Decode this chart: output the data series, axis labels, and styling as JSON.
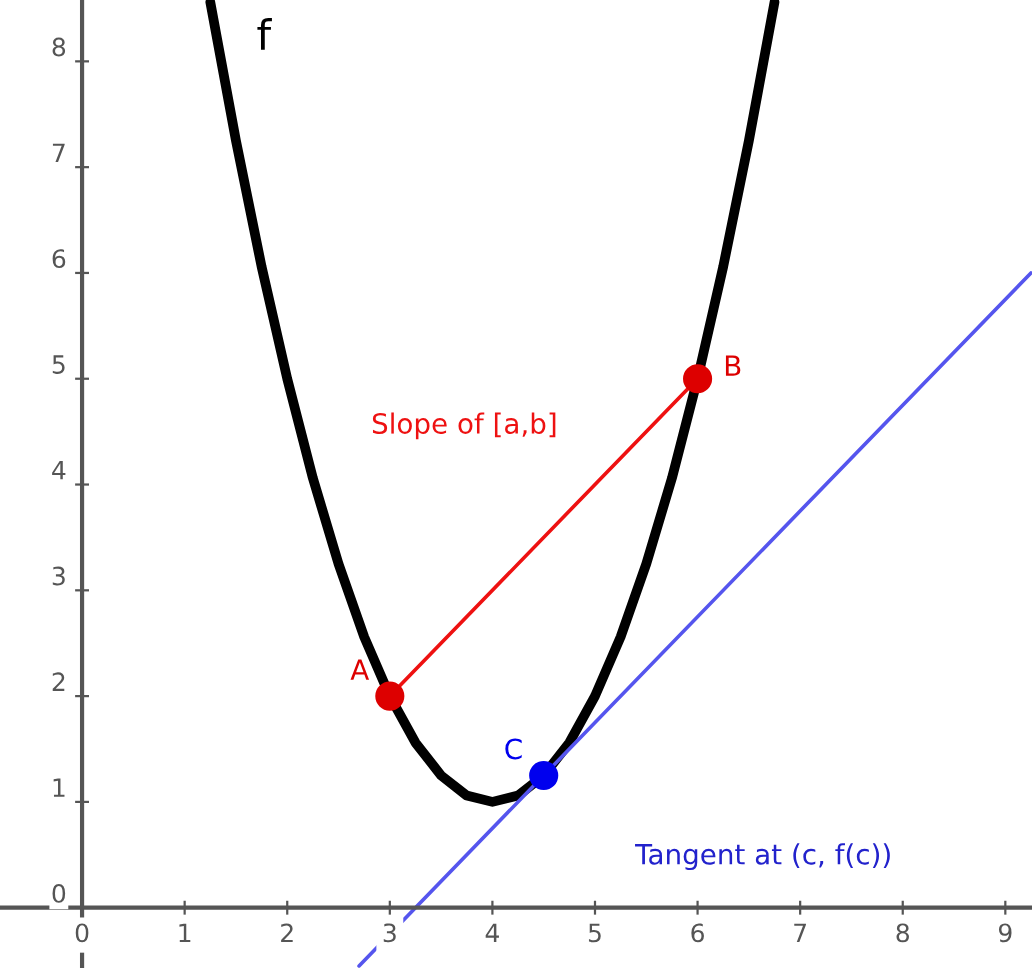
{
  "chart_data": {
    "type": "line",
    "xlim": [
      -0.8,
      9.26
    ],
    "ylim": [
      -0.57,
      8.58
    ],
    "xticks": [
      0,
      1,
      2,
      3,
      4,
      5,
      6,
      7,
      8,
      9
    ],
    "yticks": [
      0,
      1,
      2,
      3,
      4,
      5,
      6,
      7,
      8
    ],
    "grid": false,
    "legend": false,
    "marker": "none",
    "line_style": "solid",
    "series": [
      {
        "name": "f",
        "color": "#000000",
        "x": [
          1.25,
          1.5,
          1.75,
          2,
          2.25,
          2.5,
          2.75,
          3,
          3.25,
          3.5,
          3.75,
          4,
          4.25,
          4.5,
          4.75,
          5,
          5.25,
          5.5,
          5.75,
          6,
          6.25,
          6.5,
          6.75
        ],
        "values": [
          8.56,
          7.25,
          6.06,
          5,
          4.06,
          3.25,
          2.56,
          2,
          1.56,
          1.25,
          1.06,
          1,
          1.06,
          1.25,
          1.56,
          2,
          2.56,
          3.25,
          4.06,
          5,
          6.06,
          7.25,
          8.56
        ]
      },
      {
        "color": "#ee1111",
        "x": [
          3,
          6
        ],
        "values": [
          2,
          5
        ]
      },
      {
        "color": "#5555ee",
        "x": [
          2.7,
          9.25
        ],
        "values": [
          -0.55,
          6
        ]
      },
      {
        "type": "scatter",
        "name": "A",
        "color": "#dd0000",
        "marker": "circle",
        "x": [
          3
        ],
        "values": [
          2
        ]
      },
      {
        "type": "scatter",
        "name": "B",
        "color": "#dd0000",
        "marker": "circle",
        "x": [
          6
        ],
        "values": [
          5
        ]
      },
      {
        "type": "scatter",
        "name": "C",
        "color": "#0000ee",
        "marker": "circle",
        "x": [
          4.5
        ],
        "values": [
          1.25
        ]
      }
    ],
    "annotations": [
      "Slope of [a,b]",
      "Tangent at (c, f(c))"
    ]
  }
}
